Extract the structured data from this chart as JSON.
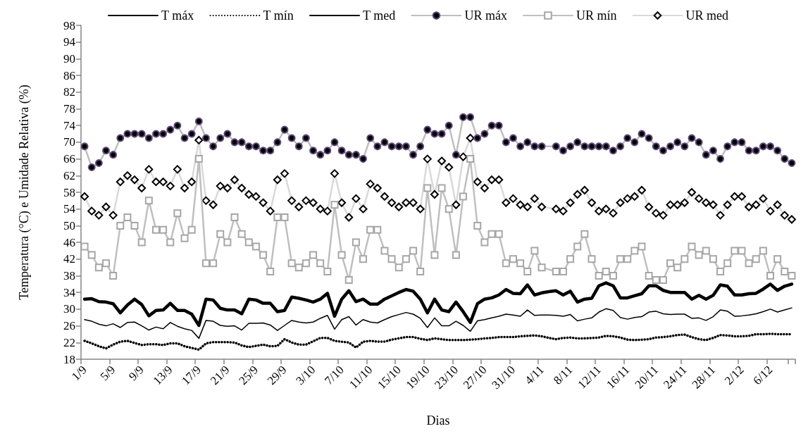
{
  "chart_data": {
    "type": "line",
    "xlabel": "Dias",
    "ylabel": "Temperatura (°C) e Umidade Relativa (%)",
    "categories": [
      "1/9",
      null,
      null,
      null,
      "5/9",
      null,
      null,
      null,
      "9/9",
      null,
      null,
      null,
      "13/9",
      null,
      null,
      null,
      "17/9",
      null,
      null,
      null,
      "21/9",
      null,
      null,
      null,
      "25/9",
      null,
      null,
      null,
      "29/9",
      null,
      null,
      null,
      "3/10",
      null,
      null,
      null,
      "7/10",
      null,
      null,
      null,
      "11/10",
      null,
      null,
      null,
      "15/10",
      null,
      null,
      null,
      "19/10",
      null,
      null,
      null,
      "23/10",
      null,
      null,
      null,
      "27/10",
      null,
      null,
      null,
      "31/10",
      null,
      null,
      null,
      "4/11",
      null,
      null,
      null,
      "8/11",
      null,
      null,
      null,
      "12/11",
      null,
      null,
      null,
      "16/11",
      null,
      null,
      null,
      "20/11",
      null,
      null,
      null,
      "24/11",
      null,
      null,
      null,
      "28/11",
      null,
      null,
      null,
      "2/12",
      null,
      null,
      null,
      "6/12",
      null,
      null,
      null
    ],
    "ylim": [
      18,
      98
    ],
    "yticks": [
      18,
      22,
      26,
      30,
      34,
      38,
      42,
      46,
      50,
      54,
      58,
      62,
      66,
      70,
      74,
      78,
      82,
      86,
      90,
      94,
      98
    ],
    "grid": false,
    "legend": "top",
    "series": [
      {
        "name": "T máx",
        "color": "#000000",
        "line_style": "solid",
        "marker": "none",
        "values": [
          32.4,
          32.5,
          31.8,
          31.7,
          31.3,
          29.1,
          31,
          32.4,
          31.1,
          28.4,
          29.7,
          29.8,
          31.4,
          29.7,
          29.7,
          28.8,
          26.1,
          32.4,
          32.2,
          30.2,
          29.8,
          29.8,
          28.9,
          32.4,
          32.2,
          31.4,
          31.4,
          29.4,
          29.7,
          32.9,
          32.6,
          32.2,
          31.7,
          32.4,
          33.8,
          28.3,
          32.4,
          34.4,
          31.8,
          32.4,
          31.2,
          31.2,
          32.4,
          33.2,
          34,
          34.7,
          34.3,
          32.4,
          29.1,
          32.4,
          29.8,
          29.4,
          31.7,
          29.4,
          26.8,
          31.3,
          32.4,
          32.7,
          33.4,
          34.7,
          33.8,
          33.7,
          35.8,
          33.4,
          33.9,
          34.2,
          34.4,
          33.4,
          34.3,
          31.7,
          32.4,
          32.6,
          35.6,
          36.3,
          35.6,
          32.7,
          32.7,
          33.2,
          33.7,
          35.6,
          35.6,
          34.5,
          34,
          34,
          34,
          32.4,
          33.3,
          32.4,
          33.3,
          35.8,
          35.5,
          33.4,
          33.4,
          33.7,
          33.8,
          34.8,
          36,
          34.5,
          35.5,
          36
        ]
      },
      {
        "name": "T mín",
        "color": "#000000",
        "line_style": "dotted",
        "marker": "none",
        "values": [
          22.4,
          21.8,
          21.1,
          20.6,
          21.5,
          22.2,
          22.4,
          21.9,
          21.4,
          21.6,
          21.6,
          21.4,
          21.8,
          21.8,
          21.1,
          20.7,
          20.3,
          21.8,
          22.1,
          22.1,
          22.1,
          22,
          21.3,
          20.9,
          21.2,
          21.5,
          21.1,
          21.2,
          22.8,
          22,
          21.5,
          21.5,
          22.3,
          23.1,
          23.1,
          22.4,
          22.2,
          22,
          20.8,
          22.2,
          22.4,
          22.2,
          22.2,
          22.7,
          23,
          23.3,
          23.3,
          22.9,
          22.6,
          23,
          22.8,
          22.6,
          22.6,
          22.6,
          22.7,
          22.8,
          23,
          23.1,
          23.3,
          23.3,
          23.3,
          23.5,
          23.6,
          23.7,
          23.5,
          23.1,
          22.8,
          23.1,
          23.2,
          23,
          23,
          23.1,
          23.2,
          23.6,
          23.5,
          23.2,
          22.7,
          22.6,
          22.7,
          22.8,
          23.2,
          23.3,
          23.5,
          23.8,
          23.9,
          23.3,
          22.8,
          22.6,
          23.1,
          23.8,
          23.7,
          23.5,
          23.5,
          23.6,
          24,
          24,
          24.1,
          24,
          24,
          24
        ]
      },
      {
        "name": "T med",
        "color": "#000000",
        "line_style": "solid",
        "marker": "none",
        "values": [
          27.5,
          27.1,
          26.4,
          26,
          26.5,
          25.6,
          26.8,
          26.9,
          26,
          25,
          25.7,
          25.3,
          26.8,
          25.9,
          25.3,
          24.9,
          23,
          27.3,
          27.1,
          26.1,
          25.9,
          26,
          25,
          26.6,
          26.6,
          26.7,
          26.2,
          24.9,
          26.1,
          27.3,
          26.9,
          26.7,
          26.9,
          27.8,
          28.5,
          25.2,
          27.5,
          28.2,
          26.2,
          27.5,
          26.9,
          26.7,
          27.5,
          28.2,
          28.7,
          29.2,
          28.8,
          27.8,
          25.6,
          27.9,
          26,
          26,
          27.1,
          26.1,
          24.7,
          27.2,
          27.5,
          27.9,
          28.3,
          28.8,
          28.6,
          28.3,
          29.8,
          28.5,
          28.6,
          28.6,
          28.5,
          28.3,
          28.7,
          27.2,
          27.6,
          27.9,
          29.3,
          30.1,
          29.7,
          28,
          27.6,
          28,
          28.2,
          29.3,
          29.5,
          28.9,
          28.7,
          28.8,
          28.8,
          27.8,
          27.9,
          27.3,
          28.2,
          29.8,
          29.5,
          28.3,
          28.4,
          28.6,
          28.9,
          29.4,
          30,
          29.3,
          29.8,
          30.3
        ]
      },
      {
        "name": "UR máx",
        "color": "#bfbfbf",
        "line_style": "solid",
        "marker": "circle",
        "values": [
          69,
          64,
          65,
          68,
          67,
          71,
          72,
          72,
          72,
          71,
          72,
          72,
          73,
          74,
          71,
          72,
          75,
          71,
          69,
          71,
          72,
          70,
          70,
          69,
          69,
          68,
          68,
          70,
          73,
          71,
          69,
          71,
          68,
          67,
          68,
          70,
          68,
          67,
          67,
          66,
          71,
          69,
          70,
          69,
          69,
          69,
          67,
          69,
          73,
          72,
          72,
          74,
          67,
          76,
          76,
          71,
          72,
          74,
          74,
          70,
          71,
          69,
          70,
          69,
          69,
          null,
          69,
          68,
          69,
          70,
          69,
          69,
          69,
          69,
          68,
          69,
          71,
          70,
          72,
          71,
          69,
          68,
          69,
          70,
          69,
          71,
          70,
          67,
          68,
          66,
          69,
          70,
          70,
          68,
          68,
          69,
          69,
          68,
          66,
          65
        ]
      },
      {
        "name": "UR mín",
        "color": "#bfbfbf",
        "line_style": "solid",
        "marker": "square",
        "values": [
          45,
          43,
          40,
          41,
          38,
          50,
          52,
          50,
          46,
          56,
          49,
          49,
          46,
          53,
          47,
          49,
          66,
          41,
          41,
          48,
          46,
          52,
          48,
          46,
          45,
          43,
          39,
          52,
          52,
          41,
          40,
          41,
          43,
          41,
          39,
          55,
          43,
          37,
          46,
          42,
          49,
          49,
          44,
          42,
          40,
          42,
          44,
          39,
          59,
          43,
          59,
          54,
          43,
          57,
          66,
          50,
          46,
          48,
          48,
          41,
          42,
          41,
          39,
          44,
          40,
          null,
          39,
          39,
          42,
          45,
          48,
          42,
          38,
          39,
          38,
          42,
          42,
          44,
          45,
          38,
          37,
          37,
          41,
          40,
          42,
          45,
          43,
          44,
          42,
          39,
          41,
          44,
          44,
          41,
          42,
          44,
          38,
          42,
          39,
          38
        ]
      },
      {
        "name": "UR med",
        "color": "#d9d9d9",
        "line_style": "solid",
        "marker": "diamond",
        "values": [
          57,
          53.5,
          52.5,
          54.5,
          52.5,
          60.5,
          62,
          61,
          59,
          63.5,
          60.5,
          60.5,
          59.5,
          63.5,
          59,
          60.5,
          70.5,
          56,
          55,
          59.5,
          59,
          61,
          59,
          57.5,
          57,
          55.5,
          53.5,
          61,
          62.5,
          56,
          54.5,
          56,
          55.5,
          54,
          53.5,
          62.5,
          55.5,
          52,
          56.5,
          54,
          60,
          59,
          57,
          55.5,
          54.5,
          55.5,
          55.5,
          54,
          66,
          57.5,
          65.5,
          64,
          55,
          66.5,
          71,
          60.5,
          59,
          61,
          61,
          55.5,
          56.5,
          55,
          54.5,
          56.5,
          54.5,
          null,
          54,
          53.5,
          55.5,
          57.5,
          58.5,
          55.5,
          53.5,
          54,
          53,
          55.5,
          56.5,
          57,
          58.5,
          54.5,
          53,
          52.5,
          55,
          55,
          55.5,
          58,
          56.5,
          55.5,
          55,
          52.5,
          55,
          57,
          57,
          54.5,
          55,
          56.5,
          53.5,
          55,
          52.5,
          51.5
        ]
      }
    ]
  }
}
